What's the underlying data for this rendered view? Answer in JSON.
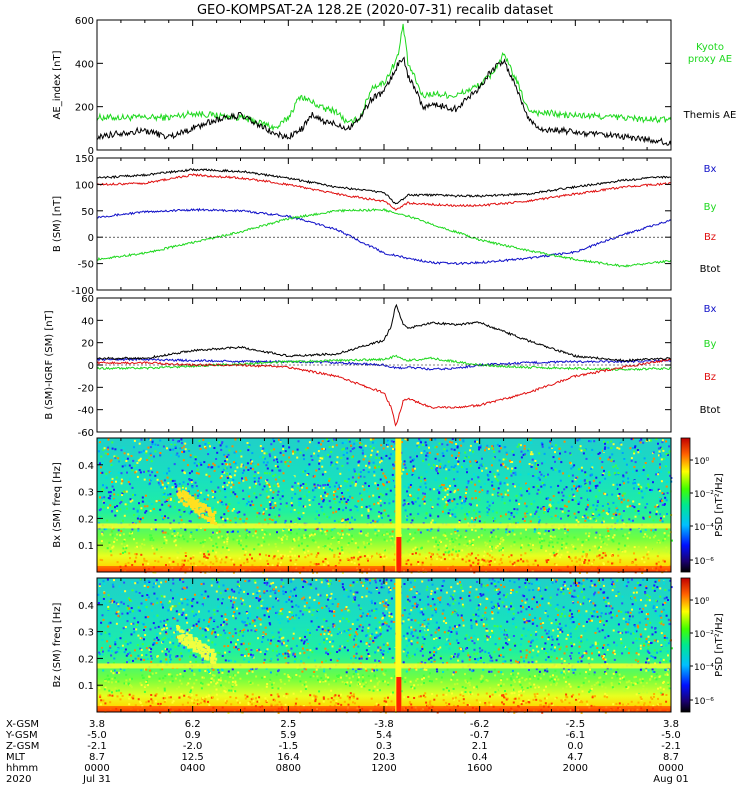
{
  "title": "GEO-KOMPSAT-2A 128.2E (2020-07-31) recalib dataset",
  "colors": {
    "black": "#000000",
    "green": "#1ed81e",
    "red": "#e01010",
    "blue": "#1010c8"
  },
  "chart_data": [
    {
      "type": "line",
      "ylabel": "AE_index [nT]",
      "ylim": [
        0,
        600
      ],
      "yticks": [
        "0",
        "200",
        "400",
        "600"
      ],
      "legend_position": "right",
      "series": [
        {
          "name": "Kyoto proxy AE",
          "color": "green",
          "t": [
            0,
            0.5,
            1,
            2,
            3,
            3.5,
            4,
            5,
            6,
            7,
            7.5,
            8,
            8.5,
            9,
            9.5,
            10,
            10.5,
            11,
            11.5,
            12,
            12.3,
            12.6,
            12.8,
            13,
            13.3,
            13.6,
            14,
            15,
            16,
            16.5,
            17,
            17.5,
            18,
            18.5,
            19,
            19.5,
            20,
            21,
            22,
            23,
            24
          ],
          "values": [
            150,
            150,
            150,
            150,
            150,
            160,
            170,
            160,
            150,
            120,
            100,
            150,
            250,
            220,
            190,
            180,
            120,
            150,
            290,
            310,
            370,
            440,
            580,
            400,
            330,
            250,
            260,
            250,
            300,
            350,
            440,
            330,
            190,
            170,
            170,
            160,
            160,
            155,
            150,
            140,
            140
          ]
        },
        {
          "name": "Themis AE",
          "color": "black",
          "t": [
            0,
            0.5,
            1,
            2,
            3,
            3.5,
            4,
            5,
            6,
            7,
            7.5,
            8,
            8.5,
            9,
            9.5,
            10,
            10.5,
            11,
            11.5,
            12,
            12.3,
            12.6,
            12.8,
            13,
            13.3,
            13.6,
            14,
            15,
            16,
            16.5,
            17,
            17.5,
            18,
            18.5,
            19,
            19.5,
            20,
            21,
            22,
            23,
            24
          ],
          "values": [
            60,
            70,
            80,
            90,
            60,
            80,
            100,
            140,
            160,
            100,
            70,
            60,
            90,
            160,
            130,
            120,
            100,
            150,
            240,
            270,
            330,
            400,
            430,
            340,
            290,
            200,
            210,
            190,
            290,
            370,
            410,
            300,
            150,
            100,
            90,
            90,
            80,
            70,
            60,
            50,
            30
          ]
        }
      ]
    },
    {
      "type": "line",
      "ylabel": "B (SM) [nT]",
      "ylim": [
        -100,
        150
      ],
      "yticks": [
        "-100",
        "-50",
        "0",
        "50",
        "100",
        "150"
      ],
      "legend_position": "right",
      "series": [
        {
          "name": "Bx",
          "color": "blue",
          "t": [
            0,
            2,
            4,
            6,
            8,
            10,
            12,
            12.5,
            13,
            14,
            15,
            16,
            18,
            20,
            22,
            24
          ],
          "values": [
            38,
            48,
            52,
            50,
            40,
            15,
            -30,
            -35,
            -40,
            -48,
            -50,
            -48,
            -40,
            -28,
            5,
            32
          ]
        },
        {
          "name": "By",
          "color": "green",
          "t": [
            0,
            2,
            4,
            6,
            8,
            10,
            12,
            12.5,
            13,
            14,
            15,
            16,
            18,
            20,
            22,
            24
          ],
          "values": [
            -42,
            -30,
            -10,
            10,
            35,
            50,
            52,
            45,
            40,
            25,
            10,
            -5,
            -25,
            -42,
            -55,
            -45
          ]
        },
        {
          "name": "Bz",
          "color": "red",
          "t": [
            0,
            2,
            4,
            6,
            8,
            10,
            12,
            12.3,
            12.5,
            13,
            14,
            15,
            16,
            18,
            20,
            22,
            24
          ],
          "values": [
            100,
            102,
            118,
            112,
            100,
            82,
            68,
            60,
            52,
            65,
            62,
            60,
            60,
            68,
            82,
            95,
            102
          ]
        },
        {
          "name": "Btot",
          "color": "black",
          "t": [
            0,
            2,
            4,
            6,
            8,
            10,
            12,
            12.3,
            12.5,
            13,
            14,
            15,
            16,
            18,
            20,
            22,
            24
          ],
          "values": [
            112,
            118,
            128,
            125,
            112,
            95,
            85,
            72,
            62,
            80,
            80,
            78,
            78,
            82,
            95,
            108,
            115
          ]
        }
      ]
    },
    {
      "type": "line",
      "ylabel": "B (SM)-IGRF (SM) [nT]",
      "ylim": [
        -60,
        60
      ],
      "yticks": [
        "-60",
        "-40",
        "-20",
        "0",
        "20",
        "40",
        "60"
      ],
      "legend_position": "right",
      "series": [
        {
          "name": "Bx",
          "color": "blue",
          "t": [
            0,
            2,
            4,
            6,
            8,
            10,
            12,
            12.5,
            13,
            14,
            15,
            16,
            18,
            20,
            22,
            24
          ],
          "values": [
            5,
            5,
            4,
            3,
            3,
            2,
            0,
            -3,
            -2,
            -4,
            -3,
            0,
            2,
            3,
            3,
            4
          ]
        },
        {
          "name": "By",
          "color": "green",
          "t": [
            0,
            2,
            4,
            6,
            8,
            10,
            12,
            12.5,
            13,
            14,
            15,
            16,
            18,
            20,
            22,
            24
          ],
          "values": [
            -3,
            -3,
            -1,
            1,
            3,
            4,
            5,
            8,
            4,
            6,
            3,
            0,
            -2,
            -3,
            -4,
            -3
          ]
        },
        {
          "name": "Bz",
          "color": "red",
          "t": [
            0,
            2,
            4,
            6,
            8,
            10,
            12,
            12.3,
            12.5,
            12.8,
            13,
            14,
            15,
            16,
            18,
            20,
            22,
            24
          ],
          "values": [
            2,
            2,
            0,
            0,
            -2,
            -10,
            -25,
            -38,
            -55,
            -32,
            -30,
            -38,
            -38,
            -36,
            -25,
            -10,
            -2,
            5
          ]
        },
        {
          "name": "Btot",
          "color": "black",
          "t": [
            0,
            2,
            4,
            6,
            8,
            10,
            12,
            12.3,
            12.5,
            12.8,
            13,
            14,
            15,
            16,
            18,
            20,
            22,
            24
          ],
          "values": [
            6,
            6,
            13,
            16,
            8,
            10,
            22,
            35,
            55,
            36,
            33,
            38,
            36,
            38,
            22,
            8,
            4,
            6
          ]
        }
      ]
    },
    {
      "type": "heatmap",
      "ylabel": "Bx (SM) freq [Hz]",
      "ylim": [
        0,
        0.5
      ],
      "yticks": [
        "0.1",
        "0.2",
        "0.3",
        "0.4"
      ],
      "colorbar_label": "PSD [nT²/Hz]",
      "colorbar_ticks": [
        "10⁰",
        "10⁻²",
        "10⁻⁴",
        "10⁻⁶"
      ]
    },
    {
      "type": "heatmap",
      "ylabel": "Bz (SM) freq [Hz]",
      "ylim": [
        0,
        0.5
      ],
      "yticks": [
        "0.1",
        "0.2",
        "0.3",
        "0.4"
      ],
      "colorbar_label": "PSD [nT²/Hz]",
      "colorbar_ticks": [
        "10⁰",
        "10⁻²",
        "10⁻⁴",
        "10⁻⁶"
      ]
    }
  ],
  "xaxis": {
    "row_labels": [
      "X-GSM",
      "Y-GSM",
      "Z-GSM",
      "MLT",
      "hhmm",
      "2020"
    ],
    "columns": [
      [
        "3.8",
        "-5.0",
        "-2.1",
        "8.7",
        "0000",
        "Jul 31"
      ],
      [
        "6.2",
        "0.9",
        "-2.0",
        "12.5",
        "0400",
        ""
      ],
      [
        "2.5",
        "5.9",
        "-1.5",
        "16.4",
        "0800",
        ""
      ],
      [
        "-3.8",
        "5.4",
        "0.3",
        "20.3",
        "1200",
        ""
      ],
      [
        "-6.2",
        "-0.7",
        "2.1",
        "0.4",
        "1600",
        ""
      ],
      [
        "-2.5",
        "-6.1",
        "0.0",
        "4.7",
        "2000",
        ""
      ],
      [
        "3.8",
        "-5.0",
        "-2.1",
        "8.7",
        "0000",
        "Aug 01"
      ]
    ]
  }
}
